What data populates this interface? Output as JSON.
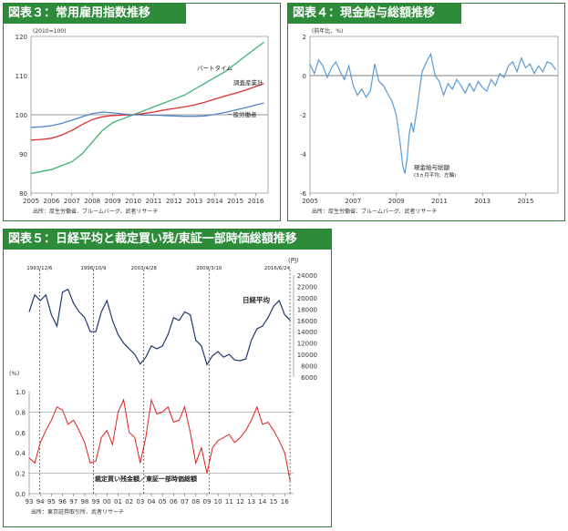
{
  "panels": {
    "p3": {
      "title": "図表３：常用雇用指数推移"
    },
    "p4": {
      "title": "図表４：現金給与総額推移"
    },
    "p5": {
      "title": "図表５：日経平均と裁定買い残/東証一部時価総額推移"
    }
  },
  "chart_data": [
    {
      "id": "fig3",
      "type": "line",
      "unit_label": "(2010=100)",
      "source": "出所：厚生労働省、ブルームバーグ、武者リサーチ",
      "xlim": [
        2005,
        2016.6
      ],
      "ylim": [
        80,
        120
      ],
      "xticks": [
        "2005",
        "2006",
        "2007",
        "2008",
        "2009",
        "2010",
        "2011",
        "2012",
        "2013",
        "2014",
        "2015",
        "2016"
      ],
      "yticks": [
        "80",
        "90",
        "100",
        "110",
        "120"
      ],
      "reference_line": 100,
      "series": [
        {
          "name": "パートタイム",
          "color": "#3cb371",
          "x": [
            2005,
            2005.5,
            2006,
            2006.5,
            2007,
            2007.5,
            2008,
            2008.5,
            2009,
            2009.5,
            2010,
            2010.5,
            2011,
            2011.5,
            2012,
            2012.5,
            2013,
            2013.5,
            2014,
            2014.5,
            2015,
            2015.5,
            2016,
            2016.4
          ],
          "y": [
            85,
            85.5,
            86,
            87,
            88,
            90,
            93,
            96,
            98,
            99,
            100,
            101,
            102,
            103,
            104,
            105,
            106.5,
            108,
            109.5,
            111,
            113,
            115,
            117,
            118.5
          ]
        },
        {
          "name": "調査産業計",
          "color": "#e03030",
          "x": [
            2005,
            2005.5,
            2006,
            2006.5,
            2007,
            2007.5,
            2008,
            2008.5,
            2009,
            2009.5,
            2010,
            2010.5,
            2011,
            2011.5,
            2012,
            2012.5,
            2013,
            2013.5,
            2014,
            2014.5,
            2015,
            2015.5,
            2016,
            2016.4
          ],
          "y": [
            93.5,
            93.7,
            94,
            94.8,
            96,
            97.5,
            98.8,
            99.5,
            99.8,
            99.9,
            100,
            100.3,
            100.7,
            101.2,
            101.6,
            102,
            102.5,
            103.2,
            104,
            104.8,
            105.5,
            106.3,
            107.2,
            108
          ]
        },
        {
          "name": "一般労働者",
          "color": "#4f86c6",
          "x": [
            2005,
            2005.5,
            2006,
            2006.5,
            2007,
            2007.5,
            2008,
            2008.5,
            2009,
            2009.5,
            2010,
            2010.5,
            2011,
            2011.5,
            2012,
            2012.5,
            2013,
            2013.5,
            2014,
            2014.5,
            2015,
            2015.5,
            2016,
            2016.4
          ],
          "y": [
            96.8,
            96.9,
            97.2,
            97.8,
            98.6,
            99.5,
            100.3,
            100.7,
            100.5,
            100.2,
            100,
            99.9,
            99.9,
            99.8,
            99.7,
            99.6,
            99.6,
            99.7,
            100.1,
            100.6,
            101.2,
            101.8,
            102.5,
            103
          ]
        }
      ]
    },
    {
      "id": "fig4",
      "type": "line",
      "unit_label": "(前年比、%)",
      "source": "出所：厚生労働省、ブルームバーグ、武者リサーチ",
      "xlim": [
        2005,
        2016.5
      ],
      "ylim": [
        -6,
        2
      ],
      "xticks": [
        "2005",
        "2007",
        "2009",
        "2011",
        "2013",
        "2015"
      ],
      "yticks": [
        "-6",
        "-4",
        "-2",
        "0",
        "2"
      ],
      "reference_line": 0,
      "annotation": "現金給与総額",
      "annotation2": "(3ヵ月平均、左軸)",
      "series": [
        {
          "name": "現金給与総額",
          "color": "#5b9bd5",
          "x": [
            2005,
            2005.2,
            2005.4,
            2005.6,
            2005.8,
            2006,
            2006.2,
            2006.4,
            2006.6,
            2006.8,
            2007,
            2007.2,
            2007.4,
            2007.6,
            2007.8,
            2008,
            2008.2,
            2008.4,
            2008.6,
            2008.8,
            2009,
            2009.1,
            2009.2,
            2009.3,
            2009.4,
            2009.5,
            2009.6,
            2009.7,
            2009.8,
            2010,
            2010.2,
            2010.4,
            2010.6,
            2010.8,
            2011,
            2011.2,
            2011.4,
            2011.6,
            2011.8,
            2012,
            2012.2,
            2012.4,
            2012.6,
            2012.8,
            2013,
            2013.2,
            2013.4,
            2013.6,
            2013.8,
            2014,
            2014.2,
            2014.4,
            2014.6,
            2014.8,
            2015,
            2015.2,
            2015.4,
            2015.6,
            2015.8,
            2016,
            2016.2,
            2016.4
          ],
          "y": [
            0.6,
            0.1,
            0.8,
            0.5,
            -0.1,
            0.4,
            0.7,
            0.2,
            -0.2,
            0.5,
            -0.5,
            -1.0,
            -0.7,
            -1.1,
            -0.8,
            0.6,
            -0.3,
            -0.5,
            -0.9,
            -1.3,
            -2.0,
            -2.8,
            -3.6,
            -4.6,
            -5.0,
            -4.3,
            -3.0,
            -2.4,
            -2.9,
            -1.4,
            0.2,
            0.7,
            1.1,
            0.0,
            -0.3,
            -1.0,
            -0.4,
            -0.7,
            -0.2,
            -0.5,
            -0.9,
            -0.4,
            -0.8,
            -0.3,
            -0.6,
            -0.8,
            -0.2,
            -0.5,
            0.1,
            -0.1,
            0.5,
            0.7,
            0.2,
            0.9,
            0.4,
            0.6,
            0.1,
            0.5,
            0.2,
            0.7,
            0.6,
            0.3
          ]
        }
      ]
    },
    {
      "id": "fig5",
      "type": "line",
      "unit_top": "(円)",
      "unit_bottom": "(%)",
      "source": "出所：東京証券取引所、武者リサーチ",
      "xlim": [
        1993,
        2016.8
      ],
      "xticks": [
        "93",
        "94",
        "95",
        "96",
        "97",
        "98",
        "99",
        "00",
        "01",
        "02",
        "03",
        "04",
        "05",
        "06",
        "07",
        "08",
        "09",
        "10",
        "11",
        "12",
        "13",
        "14",
        "15",
        "16"
      ],
      "top_ylim": [
        6000,
        24000
      ],
      "top_yticks": [
        "6000",
        "8000",
        "10000",
        "12000",
        "14000",
        "16000",
        "18000",
        "20000",
        "22000",
        "24000"
      ],
      "bottom_ylim": [
        0,
        1.0
      ],
      "bottom_yticks": [
        "0.0",
        "0.2",
        "0.4",
        "0.6",
        "0.8",
        "1.0"
      ],
      "bottom_ref_lines": [
        0.8,
        0.2
      ],
      "events": [
        "1993/12/6",
        "1998/10/9",
        "2003/4/28",
        "2009/3/10",
        "2016/6/24"
      ],
      "event_x": [
        1993.93,
        1998.78,
        2003.32,
        2009.19,
        2016.48
      ],
      "series": [
        {
          "name": "日経平均",
          "color": "#1f3a6e",
          "x": [
            1993,
            1993.5,
            1994,
            1994.5,
            1995,
            1995.5,
            1996,
            1996.5,
            1997,
            1997.5,
            1998,
            1998.5,
            1999,
            1999.5,
            2000,
            2000.5,
            2001,
            2001.5,
            2002,
            2002.5,
            2003,
            2003.5,
            2004,
            2004.5,
            2005,
            2005.5,
            2006,
            2006.5,
            2007,
            2007.5,
            2008,
            2008.5,
            2009,
            2009.5,
            2010,
            2010.5,
            2011,
            2011.5,
            2012,
            2012.5,
            2013,
            2013.5,
            2014,
            2014.5,
            2015,
            2015.5,
            2016,
            2016.5
          ],
          "y": [
            17500,
            20500,
            19500,
            20500,
            17000,
            15000,
            21000,
            21500,
            19000,
            17500,
            16500,
            14000,
            14000,
            17500,
            19500,
            16000,
            13500,
            12000,
            11000,
            10000,
            8300,
            9500,
            11500,
            11000,
            11500,
            13500,
            16500,
            16000,
            17500,
            17000,
            12500,
            11500,
            8200,
            9800,
            10500,
            9500,
            10000,
            9000,
            8900,
            9200,
            12500,
            14500,
            15000,
            16500,
            18500,
            19500,
            17000,
            16000
          ]
        },
        {
          "name": "裁定買い残金額／東証一部時価総額",
          "color": "#e02020",
          "x": [
            1993,
            1993.5,
            1994,
            1994.5,
            1995,
            1995.5,
            1996,
            1996.5,
            1997,
            1997.5,
            1998,
            1998.5,
            1999,
            1999.5,
            2000,
            2000.5,
            2001,
            2001.5,
            2002,
            2002.5,
            2003,
            2003.5,
            2004,
            2004.5,
            2005,
            2005.5,
            2006,
            2006.5,
            2007,
            2007.5,
            2008,
            2008.5,
            2009,
            2009.5,
            2010,
            2010.5,
            2011,
            2011.5,
            2012,
            2012.5,
            2013,
            2013.5,
            2014,
            2014.5,
            2015,
            2015.5,
            2016,
            2016.5
          ],
          "y": [
            0.35,
            0.3,
            0.5,
            0.62,
            0.72,
            0.85,
            0.82,
            0.68,
            0.72,
            0.62,
            0.5,
            0.3,
            0.32,
            0.55,
            0.62,
            0.48,
            0.8,
            0.92,
            0.6,
            0.55,
            0.3,
            0.55,
            0.92,
            0.78,
            0.8,
            0.85,
            0.7,
            0.72,
            0.85,
            0.6,
            0.3,
            0.45,
            0.2,
            0.45,
            0.52,
            0.55,
            0.58,
            0.5,
            0.55,
            0.62,
            0.72,
            0.85,
            0.68,
            0.7,
            0.62,
            0.52,
            0.4,
            0.12
          ]
        }
      ]
    }
  ]
}
